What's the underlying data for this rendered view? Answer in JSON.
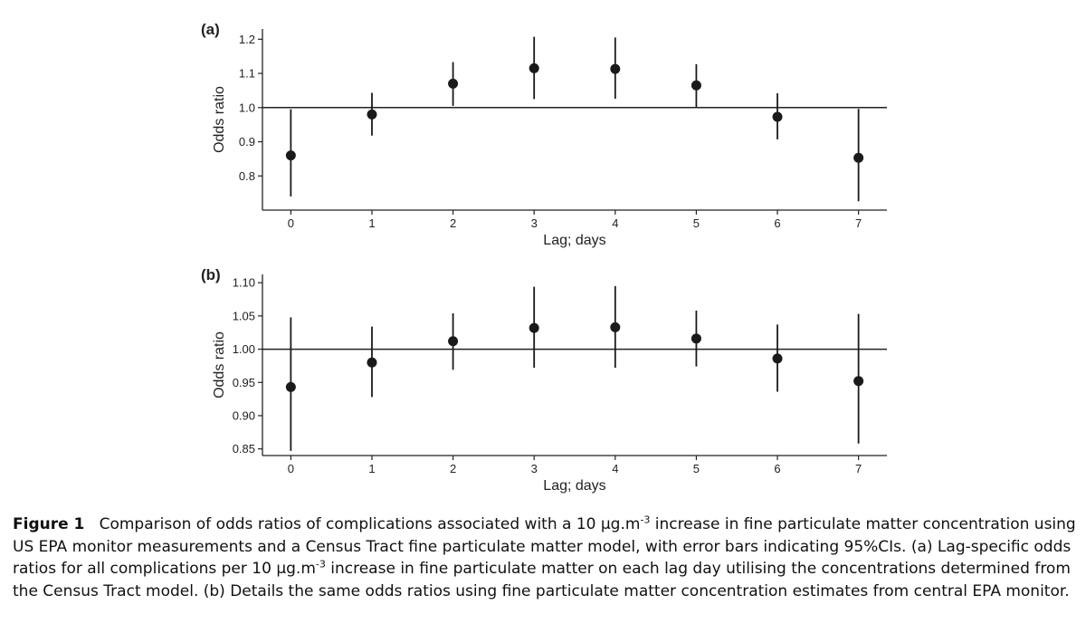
{
  "chart_data": [
    {
      "type": "scatter",
      "panel_label": "(a)",
      "xlabel": "Lag; days",
      "ylabel": "Odds ratio",
      "x": [
        0,
        1,
        2,
        3,
        4,
        5,
        6,
        7
      ],
      "y": [
        0.86,
        0.98,
        1.07,
        1.115,
        1.113,
        1.065,
        0.973,
        0.853
      ],
      "ci_low": [
        0.74,
        0.918,
        1.005,
        1.025,
        1.026,
        1.002,
        0.907,
        0.726
      ],
      "ci_high": [
        0.995,
        1.043,
        1.133,
        1.207,
        1.205,
        1.127,
        1.042,
        0.996
      ],
      "reference_line": 1.0,
      "xlim": [
        -0.35,
        7.35
      ],
      "ylim": [
        0.7,
        1.23
      ],
      "xticks": [
        "0",
        "1",
        "2",
        "3",
        "4",
        "5",
        "6",
        "7"
      ],
      "yticks": [
        "0.8",
        "0.9",
        "1.0",
        "1.1",
        "1.2"
      ],
      "grid": false
    },
    {
      "type": "scatter",
      "panel_label": "(b)",
      "xlabel": "Lag; days",
      "ylabel": "Odds ratio",
      "x": [
        0,
        1,
        2,
        3,
        4,
        5,
        6,
        7
      ],
      "y": [
        0.943,
        0.98,
        1.012,
        1.032,
        1.033,
        1.016,
        0.986,
        0.952
      ],
      "ci_low": [
        0.847,
        0.928,
        0.969,
        0.972,
        0.972,
        0.974,
        0.936,
        0.858
      ],
      "ci_high": [
        1.048,
        1.034,
        1.054,
        1.094,
        1.095,
        1.058,
        1.037,
        1.053
      ],
      "reference_line": 1.0,
      "xlim": [
        -0.35,
        7.35
      ],
      "ylim": [
        0.84,
        1.1125
      ],
      "xticks": [
        "0",
        "1",
        "2",
        "3",
        "4",
        "5",
        "6",
        "7"
      ],
      "yticks": [
        "0.85",
        "0.90",
        "0.95",
        "1.00",
        "1.05",
        "1.10"
      ],
      "grid": false
    }
  ],
  "caption": {
    "label": "Figure 1",
    "p1": "Comparison of odds ratios of complications associated with a 10 µg.m",
    "exp1": "-3",
    "p2": " increase in fine particulate matter concentration using US EPA monitor measurements and a Census Tract fine particulate matter model, with error bars indicating 95%CIs. (a) Lag-specific odds ratios for all complications per 10 µg.m",
    "exp2": "-3",
    "p3": " increase in fine particulate matter on each lag day utilising the concentrations determined from the Census Tract model. (b) Details the same odds ratios using fine particulate matter concentration estimates from central EPA monitor."
  },
  "colors": {
    "marker": "#1a1a1a",
    "axis": "#222222",
    "text": "#111111"
  }
}
